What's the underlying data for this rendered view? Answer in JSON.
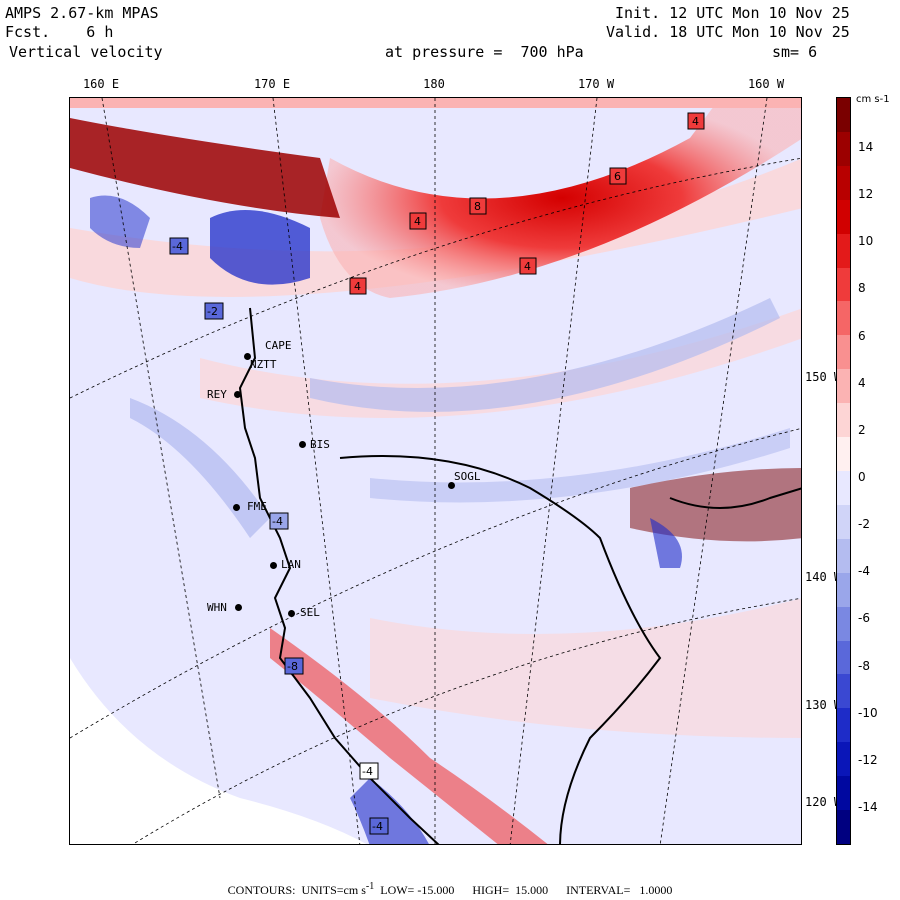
{
  "header": {
    "model": "AMPS 2.67-km MPAS",
    "fcst_label": "Fcst.",
    "fcst_value": "6 h",
    "field": "Vertical velocity",
    "init": "Init. 12 UTC Mon 10 Nov 25",
    "valid": "Valid. 18 UTC Mon 10 Nov 25",
    "pressure": "at pressure =  700 hPa",
    "smooth": "sm= 6"
  },
  "longitude_labels": [
    "160 E",
    "170 E",
    "180",
    "170 W",
    "160 W"
  ],
  "latitude_labels": [
    "150 W",
    "140 W",
    "130 W",
    "120 W"
  ],
  "stations": [
    "CAPE",
    "NZTT",
    "REY",
    "BIS",
    "SOGL",
    "FME",
    "LAN",
    "WHN",
    "SEL"
  ],
  "colorbar": {
    "unit": "cm s-1",
    "ticks": [
      "14",
      "12",
      "10",
      "8",
      "6",
      "4",
      "2",
      "0",
      "-2",
      "-4",
      "-6",
      "-8",
      "-10",
      "-12",
      "-14"
    ],
    "colors": [
      "#7a0000",
      "#9c0000",
      "#b80000",
      "#d10000",
      "#e31a1a",
      "#ef3b3b",
      "#f56666",
      "#f99090",
      "#fbb3b3",
      "#fdd5d5",
      "#fff0f0",
      "#e8e8ff",
      "#d0d4f8",
      "#b4bcf0",
      "#9aa6ea",
      "#7a88e2",
      "#5a68da",
      "#3a48d2",
      "#1e2cc8",
      "#0a16b8",
      "#0008a0",
      "#000080"
    ]
  },
  "footer": {
    "contours_label": "CONTOURS:  UNITS=cm s",
    "low": "LOW= -15.000",
    "high": "HIGH=  15.000",
    "interval": "INTERVAL=   1.0000"
  }
}
